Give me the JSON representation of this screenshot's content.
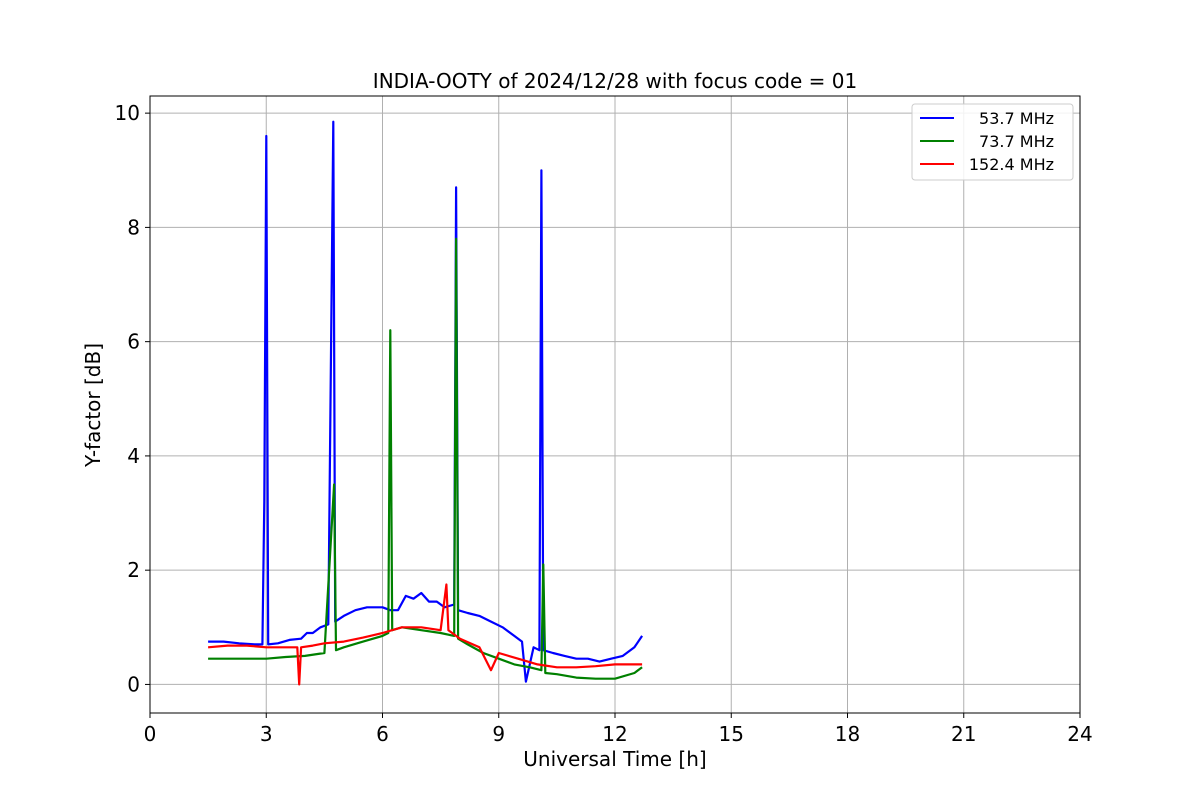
{
  "chart_data": {
    "type": "line",
    "title": "INDIA-OOTY of 2024/12/28 with focus code = 01",
    "xlabel": "Universal Time [h]",
    "ylabel": "Y-factor [dB]",
    "xlim": [
      0,
      24
    ],
    "ylim": [
      -0.5,
      10.3
    ],
    "xticks": [
      0,
      3,
      6,
      9,
      12,
      15,
      18,
      21,
      24
    ],
    "yticks": [
      0,
      2,
      4,
      6,
      8,
      10
    ],
    "grid": true,
    "legend_position": "top-right",
    "series": [
      {
        "name": "53.7 MHz",
        "color": "#0000ff",
        "x": [
          1.5,
          1.9,
          2.3,
          2.7,
          2.9,
          2.95,
          3.0,
          3.05,
          3.3,
          3.6,
          3.9,
          4.05,
          4.2,
          4.4,
          4.6,
          4.73,
          4.78,
          5.0,
          5.3,
          5.6,
          5.9,
          6.0,
          6.2,
          6.4,
          6.6,
          6.8,
          7.0,
          7.2,
          7.4,
          7.6,
          7.85,
          7.9,
          7.95,
          8.2,
          8.5,
          8.8,
          9.1,
          9.4,
          9.6,
          9.7,
          9.9,
          10.05,
          10.1,
          10.15,
          10.4,
          10.7,
          11.0,
          11.3,
          11.6,
          11.9,
          12.2,
          12.5,
          12.7
        ],
        "y": [
          0.75,
          0.75,
          0.72,
          0.7,
          0.7,
          3.2,
          9.6,
          0.7,
          0.72,
          0.78,
          0.8,
          0.9,
          0.9,
          1.0,
          1.05,
          9.85,
          1.1,
          1.2,
          1.3,
          1.35,
          1.35,
          1.35,
          1.3,
          1.3,
          1.55,
          1.5,
          1.6,
          1.45,
          1.45,
          1.35,
          1.4,
          8.7,
          1.3,
          1.25,
          1.2,
          1.1,
          1.0,
          0.85,
          0.75,
          0.05,
          0.65,
          0.6,
          9.0,
          0.6,
          0.55,
          0.5,
          0.45,
          0.45,
          0.4,
          0.45,
          0.5,
          0.65,
          0.85
        ]
      },
      {
        "name": "73.7 MHz",
        "color": "#008000",
        "x": [
          1.5,
          2.0,
          2.5,
          3.0,
          3.5,
          4.0,
          4.5,
          4.75,
          4.8,
          5.0,
          5.5,
          6.0,
          6.15,
          6.2,
          6.25,
          6.5,
          7.0,
          7.5,
          7.85,
          7.9,
          7.95,
          8.2,
          8.6,
          9.0,
          9.4,
          9.8,
          10.1,
          10.15,
          10.2,
          10.5,
          11.0,
          11.5,
          12.0,
          12.5,
          12.7
        ],
        "y": [
          0.45,
          0.45,
          0.45,
          0.45,
          0.48,
          0.5,
          0.55,
          3.5,
          0.6,
          0.65,
          0.75,
          0.85,
          0.9,
          6.2,
          0.95,
          1.0,
          0.95,
          0.9,
          0.85,
          7.8,
          0.8,
          0.7,
          0.55,
          0.45,
          0.35,
          0.3,
          0.25,
          2.1,
          0.2,
          0.18,
          0.12,
          0.1,
          0.1,
          0.2,
          0.3
        ]
      },
      {
        "name": "152.4 MHz",
        "color": "#ff0000",
        "x": [
          1.5,
          2.0,
          2.5,
          3.0,
          3.5,
          3.8,
          3.85,
          3.9,
          4.2,
          4.5,
          5.0,
          5.5,
          6.0,
          6.5,
          7.0,
          7.5,
          7.65,
          7.7,
          8.0,
          8.5,
          8.8,
          9.0,
          9.5,
          10.0,
          10.5,
          11.0,
          11.5,
          12.0,
          12.5,
          12.7
        ],
        "y": [
          0.65,
          0.68,
          0.68,
          0.65,
          0.65,
          0.65,
          0.0,
          0.65,
          0.68,
          0.72,
          0.75,
          0.82,
          0.9,
          1.0,
          1.0,
          0.95,
          1.75,
          0.95,
          0.8,
          0.65,
          0.25,
          0.55,
          0.45,
          0.35,
          0.3,
          0.3,
          0.32,
          0.35,
          0.35,
          0.35
        ]
      }
    ]
  }
}
